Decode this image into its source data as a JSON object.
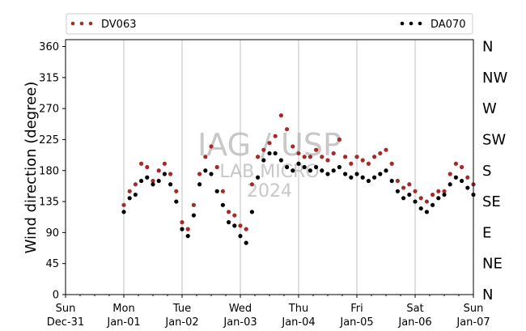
{
  "chart_data": {
    "type": "scatter",
    "title": "",
    "ylabel": "Wind direction (degree)",
    "xlabel": "",
    "ylim": [
      0,
      370
    ],
    "yticks": [
      0,
      45,
      90,
      135,
      180,
      225,
      270,
      315,
      360
    ],
    "xlim_days": [
      0,
      7
    ],
    "xticks": [
      {
        "line1": "Sun",
        "line2": "Dec-31"
      },
      {
        "line1": "Mon",
        "line2": "Jan-01"
      },
      {
        "line1": "Tue",
        "line2": "Jan-02"
      },
      {
        "line1": "Wed",
        "line2": "Jan-03"
      },
      {
        "line1": "Thu",
        "line2": "Jan-04"
      },
      {
        "line1": "Fri",
        "line2": "Jan-05"
      },
      {
        "line1": "Sat",
        "line2": "Jan-06"
      },
      {
        "line1": "Sun",
        "line2": "Jan-07"
      }
    ],
    "compass_labels": [
      "N",
      "NE",
      "E",
      "SE",
      "S",
      "SW",
      "W",
      "NW",
      "N"
    ],
    "grid": "vertical",
    "legend_placement": "top",
    "watermark": {
      "line1": "IAG / USP",
      "line2": "LAB MICRO",
      "line3": "2024"
    },
    "series": [
      {
        "name": "DV063",
        "color": "#a52a2a",
        "x": [
          1.0,
          1.1,
          1.2,
          1.3,
          1.4,
          1.5,
          1.6,
          1.7,
          1.8,
          1.9,
          2.0,
          2.1,
          2.2,
          2.3,
          2.4,
          2.5,
          2.6,
          2.7,
          2.8,
          2.9,
          3.0,
          3.1,
          3.2,
          3.3,
          3.4,
          3.5,
          3.6,
          3.7,
          3.8,
          3.9,
          4.0,
          4.1,
          4.2,
          4.3,
          4.4,
          4.5,
          4.6,
          4.7,
          4.8,
          4.9,
          5.0,
          5.1,
          5.2,
          5.3,
          5.4,
          5.5,
          5.6,
          5.7,
          5.8,
          5.9,
          6.0,
          6.1,
          6.2,
          6.3,
          6.4,
          6.5,
          6.6,
          6.7,
          6.8,
          6.9,
          7.0
        ],
        "values": [
          130,
          150,
          160,
          190,
          185,
          165,
          180,
          190,
          175,
          150,
          105,
          95,
          130,
          175,
          200,
          215,
          185,
          150,
          120,
          115,
          100,
          95,
          160,
          200,
          210,
          220,
          230,
          260,
          240,
          215,
          205,
          200,
          200,
          210,
          200,
          195,
          205,
          225,
          200,
          190,
          200,
          195,
          190,
          200,
          205,
          210,
          190,
          165,
          155,
          160,
          150,
          140,
          135,
          145,
          150,
          150,
          175,
          190,
          185,
          170,
          160
        ]
      },
      {
        "name": "DA070",
        "color": "#000000",
        "x": [
          1.0,
          1.1,
          1.2,
          1.3,
          1.4,
          1.5,
          1.6,
          1.7,
          1.8,
          1.9,
          2.0,
          2.1,
          2.2,
          2.3,
          2.4,
          2.5,
          2.6,
          2.7,
          2.8,
          2.9,
          3.0,
          3.1,
          3.2,
          3.3,
          3.4,
          3.5,
          3.6,
          3.7,
          3.8,
          3.9,
          4.0,
          4.1,
          4.2,
          4.3,
          4.4,
          4.5,
          4.6,
          4.7,
          4.8,
          4.9,
          5.0,
          5.1,
          5.2,
          5.3,
          5.4,
          5.5,
          5.6,
          5.7,
          5.8,
          5.9,
          6.0,
          6.1,
          6.2,
          6.3,
          6.4,
          6.5,
          6.6,
          6.7,
          6.8,
          6.9,
          7.0
        ],
        "values": [
          120,
          140,
          145,
          165,
          170,
          160,
          165,
          175,
          160,
          135,
          95,
          85,
          115,
          160,
          180,
          175,
          150,
          130,
          105,
          100,
          85,
          75,
          120,
          170,
          195,
          205,
          205,
          195,
          185,
          180,
          190,
          185,
          180,
          185,
          180,
          175,
          180,
          185,
          175,
          170,
          175,
          170,
          165,
          170,
          175,
          180,
          165,
          150,
          140,
          145,
          135,
          125,
          120,
          130,
          140,
          145,
          160,
          170,
          165,
          155,
          145
        ]
      }
    ]
  }
}
